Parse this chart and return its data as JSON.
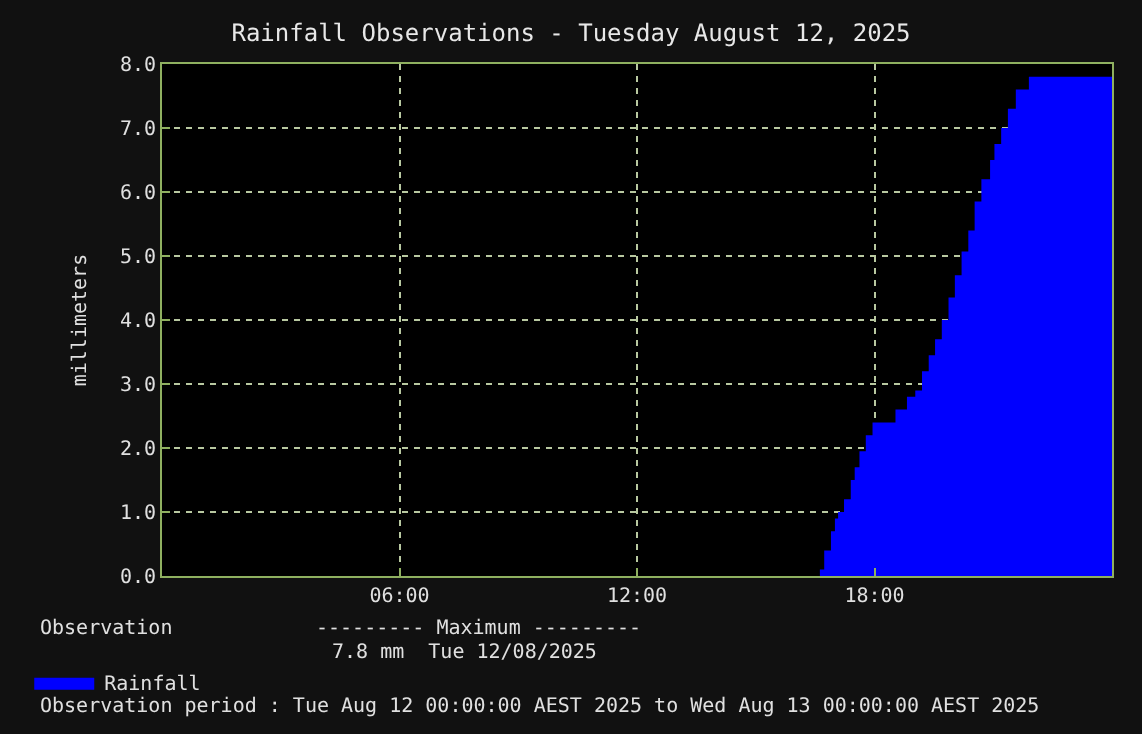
{
  "chart_data": {
    "type": "area",
    "title": "Rainfall Observations - Tuesday August 12, 2025",
    "ylabel": "millimeters",
    "series": [
      {
        "name": "Rainfall",
        "color": "#0000ff",
        "x": [
          0,
          16.6,
          16.62,
          16.73,
          16.9,
          17.0,
          17.08,
          17.23,
          17.4,
          17.5,
          17.62,
          17.78,
          17.95,
          18.53,
          18.82,
          19.03,
          19.2,
          19.37,
          19.53,
          19.7,
          19.87,
          20.03,
          20.2,
          20.37,
          20.53,
          20.7,
          20.92,
          21.03,
          21.2,
          21.37,
          21.57,
          21.9,
          24
        ],
        "values": [
          0,
          0,
          0.1,
          0.4,
          0.7,
          0.9,
          1.0,
          1.2,
          1.5,
          1.7,
          1.95,
          2.2,
          2.4,
          2.6,
          2.8,
          2.9,
          3.2,
          3.45,
          3.7,
          4.0,
          4.35,
          4.7,
          5.07,
          5.4,
          5.85,
          6.2,
          6.5,
          6.75,
          7.0,
          7.3,
          7.6,
          7.8,
          7.8
        ]
      }
    ],
    "xlim": [
      0,
      24
    ],
    "xticks": [
      {
        "value": 0,
        "label": null
      },
      {
        "value": 6,
        "label": "06:00"
      },
      {
        "value": 12,
        "label": "12:00"
      },
      {
        "value": 18,
        "label": "18:00"
      },
      {
        "value": 24,
        "label": null
      }
    ],
    "ylim": [
      0,
      8
    ],
    "yticks": [
      {
        "value": 0,
        "label": "0.0"
      },
      {
        "value": 1,
        "label": "1.0"
      },
      {
        "value": 2,
        "label": "2.0"
      },
      {
        "value": 3,
        "label": "3.0"
      },
      {
        "value": 4,
        "label": "4.0"
      },
      {
        "value": 5,
        "label": "5.0"
      },
      {
        "value": 6,
        "label": "6.0"
      },
      {
        "value": 7,
        "label": "7.0"
      },
      {
        "value": 8,
        "label": "8.0"
      }
    ],
    "grid": true,
    "legend": "bottom left",
    "annotations": [
      "Observation",
      "--------- Maximum ---------",
      "7.8 mm  Tue 12/08/2025",
      "Observation period : Tue Aug 12 00:00:00 AEST 2025 to Wed Aug 13 00:00:00 AEST 2025"
    ]
  }
}
